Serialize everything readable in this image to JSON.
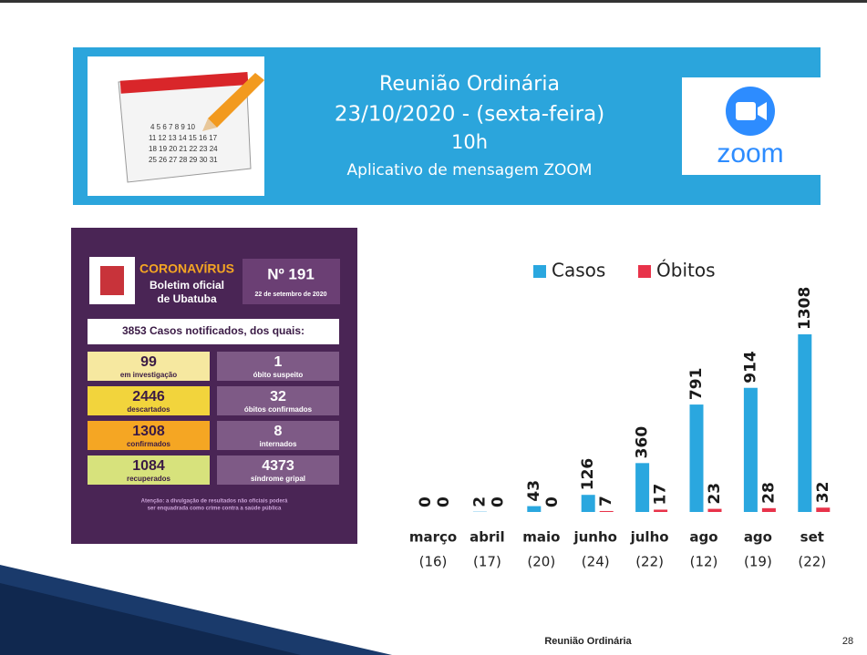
{
  "header": {
    "line1": "Reunião Ordinária",
    "line2": "23/10/2020 - (sexta-feira)",
    "line3": "10h",
    "line4": "Aplicativo de mensagem ZOOM",
    "logo_text": "zoom"
  },
  "bulletin": {
    "brand": "CORONAVÍRUS",
    "title_line1": "Boletim oficial",
    "title_line2": "de Ubatuba",
    "number": "Nº 191",
    "date": "22 de setembro de 2020",
    "summary": "3853 Casos notificados, dos quais:",
    "cells": [
      {
        "number": "99",
        "label": "em investigação"
      },
      {
        "number": "1",
        "label": "óbito suspeito"
      },
      {
        "number": "2446",
        "label": "descartados"
      },
      {
        "number": "32",
        "label": "óbitos confirmados"
      },
      {
        "number": "1308",
        "label": "confirmados"
      },
      {
        "number": "8",
        "label": "internados"
      },
      {
        "number": "1084",
        "label": "recuperados"
      },
      {
        "number": "4373",
        "label": "síndrome gripal"
      }
    ],
    "footnote_line1": "Atenção: a divulgação de resultados não oficiais poderá",
    "footnote_line2": "ser enquadrada como crime contra a saúde pública"
  },
  "chart_data": {
    "type": "bar",
    "categories": [
      "março",
      "abril",
      "maio",
      "junho",
      "julho",
      "ago",
      "ago",
      "set"
    ],
    "category_sublabels": [
      "(16)",
      "(17)",
      "(20)",
      "(24)",
      "(22)",
      "(12)",
      "(19)",
      "(22)"
    ],
    "series": [
      {
        "name": "Casos",
        "color": "#2aa7df",
        "values": [
          0,
          2,
          43,
          126,
          360,
          791,
          914,
          1308
        ]
      },
      {
        "name": "Óbitos",
        "color": "#e8334a",
        "values": [
          0,
          0,
          0,
          7,
          17,
          23,
          28,
          32
        ]
      }
    ],
    "legend": "top"
  },
  "footer": {
    "text": "Reunião Ordinária",
    "page": "28"
  }
}
